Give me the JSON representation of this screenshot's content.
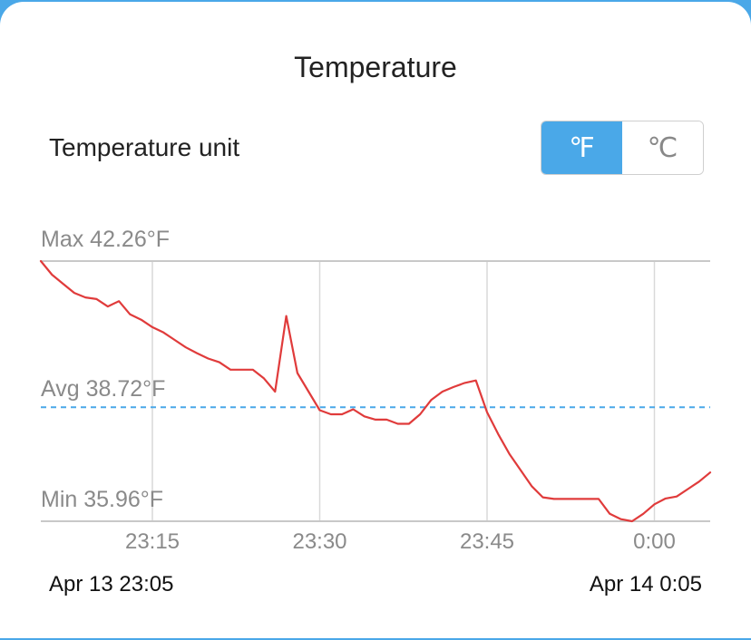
{
  "header": {
    "title": "Temperature"
  },
  "unit_selector": {
    "label": "Temperature unit",
    "options": [
      "℉",
      "℃"
    ],
    "selected": "℉"
  },
  "colors": {
    "accent": "#4aa8e8",
    "series_line": "#e03b3b",
    "avg_line": "#4aa8e8",
    "grid": "#d9d9d9"
  },
  "footer": {
    "start": "Apr 13  23:05",
    "end": "Apr 14  0:05"
  },
  "chart_data": {
    "type": "line",
    "title": "",
    "xlabel": "",
    "ylabel": "",
    "unit": "°F",
    "x_start": "23:05",
    "x_end": "0:05",
    "x_ticks": [
      "23:15",
      "23:30",
      "23:45",
      "0:00"
    ],
    "ylim": [
      35.96,
      42.26
    ],
    "max_label": "Max 42.26°F",
    "avg_label": "Avg 38.72°F",
    "min_label": "Min 35.96°F",
    "max": 42.26,
    "avg": 38.72,
    "min": 35.96,
    "series": [
      {
        "points": [
          [
            "23:05",
            42.26
          ],
          [
            "23:06",
            41.93
          ],
          [
            "23:07",
            41.71
          ],
          [
            "23:08",
            41.49
          ],
          [
            "23:09",
            41.38
          ],
          [
            "23:10",
            41.34
          ],
          [
            "23:11",
            41.16
          ],
          [
            "23:12",
            41.29
          ],
          [
            "23:13",
            40.97
          ],
          [
            "23:14",
            40.84
          ],
          [
            "23:15",
            40.66
          ],
          [
            "23:16",
            40.53
          ],
          [
            "23:17",
            40.35
          ],
          [
            "23:18",
            40.17
          ],
          [
            "23:19",
            40.03
          ],
          [
            "23:20",
            39.9
          ],
          [
            "23:21",
            39.81
          ],
          [
            "23:22",
            39.63
          ],
          [
            "23:23",
            39.63
          ],
          [
            "23:24",
            39.63
          ],
          [
            "23:25",
            39.42
          ],
          [
            "23:26",
            39.1
          ],
          [
            "23:27",
            40.93
          ],
          [
            "23:28",
            39.55
          ],
          [
            "23:29",
            39.1
          ],
          [
            "23:30",
            38.65
          ],
          [
            "23:31",
            38.55
          ],
          [
            "23:32",
            38.55
          ],
          [
            "23:33",
            38.67
          ],
          [
            "23:34",
            38.5
          ],
          [
            "23:35",
            38.42
          ],
          [
            "23:36",
            38.42
          ],
          [
            "23:37",
            38.32
          ],
          [
            "23:38",
            38.32
          ],
          [
            "23:39",
            38.55
          ],
          [
            "23:40",
            38.9
          ],
          [
            "23:41",
            39.1
          ],
          [
            "23:42",
            39.21
          ],
          [
            "23:43",
            39.31
          ],
          [
            "23:44",
            39.37
          ],
          [
            "23:45",
            38.6
          ],
          [
            "23:46",
            38.07
          ],
          [
            "23:47",
            37.59
          ],
          [
            "23:48",
            37.2
          ],
          [
            "23:49",
            36.81
          ],
          [
            "23:50",
            36.54
          ],
          [
            "23:51",
            36.5
          ],
          [
            "23:52",
            36.5
          ],
          [
            "23:53",
            36.5
          ],
          [
            "23:54",
            36.5
          ],
          [
            "23:55",
            36.5
          ],
          [
            "23:56",
            36.14
          ],
          [
            "23:57",
            36.01
          ],
          [
            "23:58",
            35.96
          ],
          [
            "23:59",
            36.14
          ],
          [
            "0:00",
            36.37
          ],
          [
            "0:01",
            36.51
          ],
          [
            "0:02",
            36.56
          ],
          [
            "0:03",
            36.74
          ],
          [
            "0:04",
            36.92
          ],
          [
            "0:05",
            37.14
          ]
        ]
      }
    ]
  }
}
